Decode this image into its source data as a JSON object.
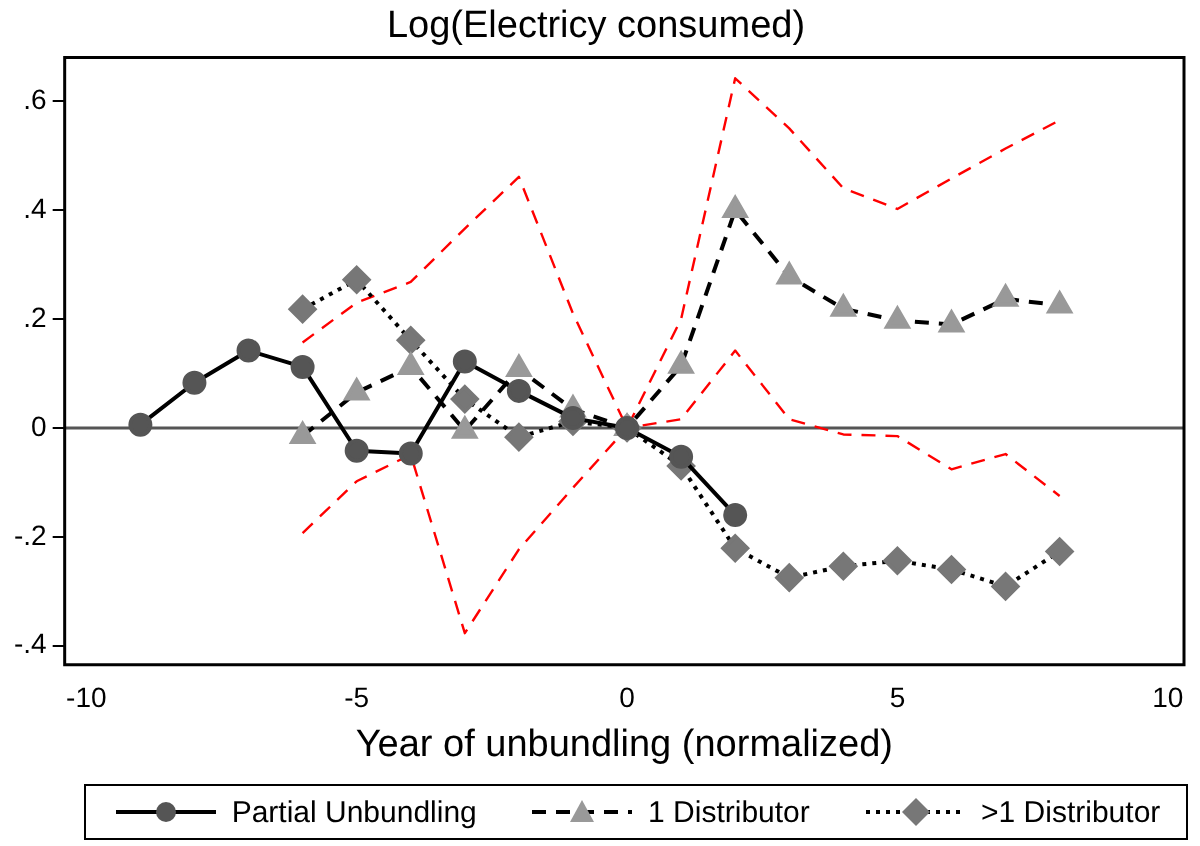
{
  "chart_data": {
    "type": "line",
    "title": "Log(Electricy consumed)",
    "xlabel": "Year of unbundling (normalized)",
    "xlim": [
      -10.4,
      10.3
    ],
    "xticks": [
      -10,
      -5,
      0,
      5,
      10
    ],
    "ylim": [
      -0.435,
      0.68
    ],
    "yticks": [
      {
        "value": -0.4,
        "label": "-.4"
      },
      {
        "value": -0.2,
        "label": "-.2"
      },
      0,
      {
        "value": 0.2,
        "label": ".2"
      },
      {
        "value": 0.4,
        "label": ".4"
      },
      {
        "value": 0.6,
        "label": ".6"
      }
    ],
    "grid": false,
    "legend": "bottom",
    "ref_lines": [
      {
        "axis": "y",
        "value": 0,
        "color": "#555555"
      }
    ],
    "series": [
      {
        "name": "Partial Unbundling",
        "color": "#555555",
        "marker": "circle",
        "line_style": "solid",
        "x": [
          -9,
          -8,
          -7,
          -6,
          -5,
          -4,
          -3,
          -2,
          -1,
          0,
          1,
          2
        ],
        "values": [
          0.006,
          0.083,
          0.142,
          0.112,
          -0.042,
          -0.047,
          0.122,
          0.068,
          0.018,
          0,
          -0.053,
          -0.16
        ]
      },
      {
        "name": "1 Distributor",
        "color": "#999999",
        "marker": "triangle",
        "line_style": "dashed",
        "x": [
          -6,
          -5,
          -4,
          -3,
          -2,
          -1,
          0,
          1,
          2,
          3,
          4,
          5,
          6,
          7,
          8
        ],
        "values": [
          -0.015,
          0.065,
          0.112,
          -0.005,
          0.108,
          0.034,
          0,
          0.114,
          0.4,
          0.278,
          0.219,
          0.197,
          0.19,
          0.237,
          0.225
        ]
      },
      {
        "name": ">1 Distributor",
        "color": "#777777",
        "marker": "diamond",
        "line_style": "dotted",
        "x": [
          -6,
          -5,
          -4,
          -3,
          -2,
          -1,
          0,
          1,
          2,
          3,
          4,
          5,
          6,
          7,
          8
        ],
        "values": [
          0.218,
          0.272,
          0.161,
          0.053,
          -0.017,
          0.012,
          0,
          -0.07,
          -0.221,
          -0.275,
          -0.254,
          -0.244,
          -0.26,
          -0.291,
          -0.227
        ]
      },
      {
        "color": "#ff0000",
        "marker": "none",
        "line_style": "dashed",
        "x": [
          -6,
          -5,
          -4,
          -3,
          -2,
          -1,
          0,
          1,
          2,
          3,
          4,
          5,
          6,
          7,
          8
        ],
        "values": [
          0.157,
          0.23,
          0.268,
          0.366,
          0.461,
          0.21,
          0,
          0.2,
          0.642,
          0.55,
          0.44,
          0.402,
          0.458,
          0.513,
          0.565
        ]
      },
      {
        "color": "#ff0000",
        "marker": "none",
        "line_style": "dashed",
        "x": [
          -6,
          -5,
          -4,
          -3,
          -2,
          -1,
          0,
          1,
          2,
          3,
          4,
          5,
          6,
          7,
          8
        ],
        "values": [
          -0.193,
          -0.098,
          -0.049,
          -0.377,
          -0.223,
          -0.11,
          0,
          0.016,
          0.142,
          0.016,
          -0.012,
          -0.015,
          -0.076,
          -0.048,
          -0.125
        ]
      }
    ]
  }
}
